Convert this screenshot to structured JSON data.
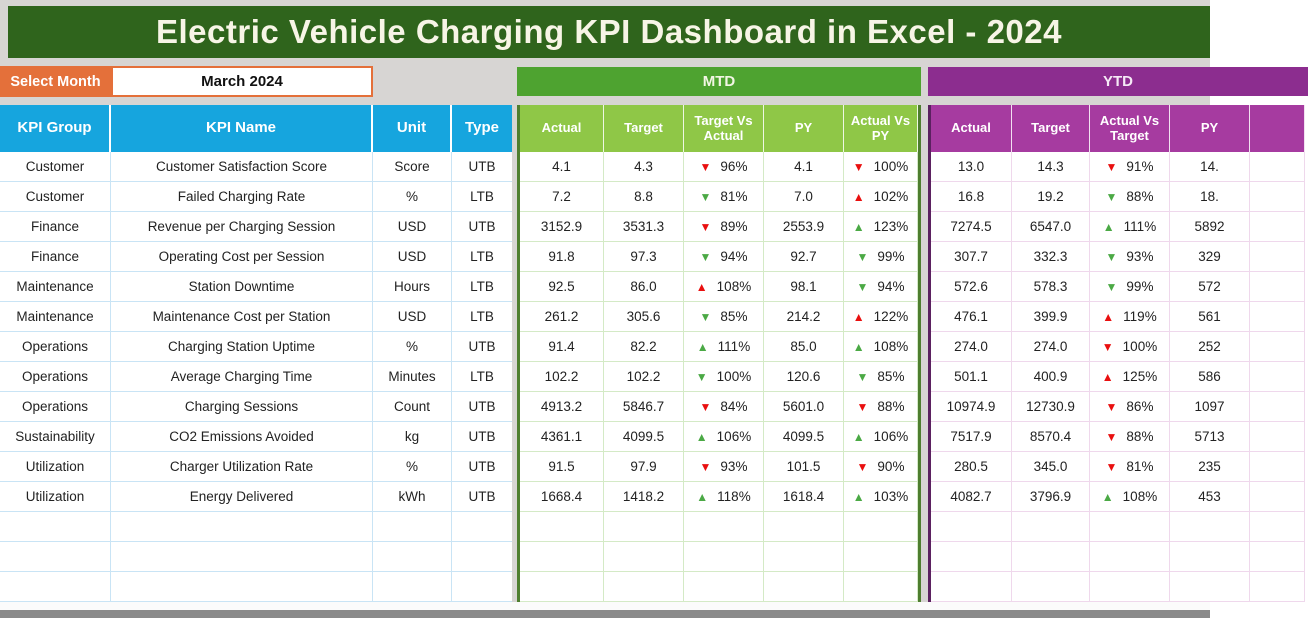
{
  "title": "Electric Vehicle Charging KPI Dashboard in Excel - 2024",
  "month_selector": {
    "label": "Select Month",
    "value": "March 2024"
  },
  "sections": {
    "mtd_label": "MTD",
    "ytd_label": "YTD"
  },
  "columns": {
    "left": [
      "KPI Group",
      "KPI Name",
      "Unit",
      "Type"
    ],
    "mtd": [
      "Actual",
      "Target",
      "Target Vs Actual",
      "PY",
      "Actual Vs PY"
    ],
    "ytd": [
      "Actual",
      "Target",
      "Actual Vs Target",
      "PY"
    ]
  },
  "colors": {
    "banner_green": "#2F641C",
    "title_text": "#F7F5E6",
    "orange": "#E4703A",
    "header_blue": "#16A5DE",
    "mtd_green": "#4EA330",
    "mtd_light_green": "#8FC747",
    "ytd_purple": "#8C2D8F",
    "ytd_magenta": "#A63BA0",
    "left_border_teal": "#1C7297",
    "mtd_border_green": "#4E7E2F",
    "ytd_border_purple": "#5B2160",
    "arrow_red": "#E90F0F",
    "arrow_green": "#4BA945",
    "grid_blue": "#C9E4F5",
    "grid_green": "#D4EAC6",
    "grid_pink": "#EFD8EC",
    "page_bg": "#D7D5D3",
    "bottom_bar": "#8A8A8A",
    "cell_text": "#222222"
  },
  "empty_row_count": 3,
  "rows": [
    {
      "group": "Customer",
      "name": "Customer Satisfaction Score",
      "unit": "Score",
      "type": "UTB",
      "mtd": {
        "actual": "4.1",
        "target": "4.3",
        "tva": {
          "dir": "down",
          "color": "red",
          "pct": "96%"
        },
        "py": "4.1",
        "avpy": {
          "dir": "down",
          "color": "red",
          "pct": "100%"
        }
      },
      "ytd": {
        "actual": "13.0",
        "target": "14.3",
        "avt": {
          "dir": "down",
          "color": "red",
          "pct": "91%"
        },
        "py": "14."
      }
    },
    {
      "group": "Customer",
      "name": "Failed Charging Rate",
      "unit": "%",
      "type": "LTB",
      "mtd": {
        "actual": "7.2",
        "target": "8.8",
        "tva": {
          "dir": "down",
          "color": "green",
          "pct": "81%"
        },
        "py": "7.0",
        "avpy": {
          "dir": "up",
          "color": "red",
          "pct": "102%"
        }
      },
      "ytd": {
        "actual": "16.8",
        "target": "19.2",
        "avt": {
          "dir": "down",
          "color": "green",
          "pct": "88%"
        },
        "py": "18."
      }
    },
    {
      "group": "Finance",
      "name": "Revenue per Charging Session",
      "unit": "USD",
      "type": "UTB",
      "mtd": {
        "actual": "3152.9",
        "target": "3531.3",
        "tva": {
          "dir": "down",
          "color": "red",
          "pct": "89%"
        },
        "py": "2553.9",
        "avpy": {
          "dir": "up",
          "color": "green",
          "pct": "123%"
        }
      },
      "ytd": {
        "actual": "7274.5",
        "target": "6547.0",
        "avt": {
          "dir": "up",
          "color": "green",
          "pct": "111%"
        },
        "py": "5892"
      }
    },
    {
      "group": "Finance",
      "name": "Operating Cost per Session",
      "unit": "USD",
      "type": "LTB",
      "mtd": {
        "actual": "91.8",
        "target": "97.3",
        "tva": {
          "dir": "down",
          "color": "green",
          "pct": "94%"
        },
        "py": "92.7",
        "avpy": {
          "dir": "down",
          "color": "green",
          "pct": "99%"
        }
      },
      "ytd": {
        "actual": "307.7",
        "target": "332.3",
        "avt": {
          "dir": "down",
          "color": "green",
          "pct": "93%"
        },
        "py": "329"
      }
    },
    {
      "group": "Maintenance",
      "name": "Station Downtime",
      "unit": "Hours",
      "type": "LTB",
      "mtd": {
        "actual": "92.5",
        "target": "86.0",
        "tva": {
          "dir": "up",
          "color": "red",
          "pct": "108%"
        },
        "py": "98.1",
        "avpy": {
          "dir": "down",
          "color": "green",
          "pct": "94%"
        }
      },
      "ytd": {
        "actual": "572.6",
        "target": "578.3",
        "avt": {
          "dir": "down",
          "color": "green",
          "pct": "99%"
        },
        "py": "572"
      }
    },
    {
      "group": "Maintenance",
      "name": "Maintenance Cost per Station",
      "unit": "USD",
      "type": "LTB",
      "mtd": {
        "actual": "261.2",
        "target": "305.6",
        "tva": {
          "dir": "down",
          "color": "green",
          "pct": "85%"
        },
        "py": "214.2",
        "avpy": {
          "dir": "up",
          "color": "red",
          "pct": "122%"
        }
      },
      "ytd": {
        "actual": "476.1",
        "target": "399.9",
        "avt": {
          "dir": "up",
          "color": "red",
          "pct": "119%"
        },
        "py": "561"
      }
    },
    {
      "group": "Operations",
      "name": "Charging Station Uptime",
      "unit": "%",
      "type": "UTB",
      "mtd": {
        "actual": "91.4",
        "target": "82.2",
        "tva": {
          "dir": "up",
          "color": "green",
          "pct": "111%"
        },
        "py": "85.0",
        "avpy": {
          "dir": "up",
          "color": "green",
          "pct": "108%"
        }
      },
      "ytd": {
        "actual": "274.0",
        "target": "274.0",
        "avt": {
          "dir": "down",
          "color": "red",
          "pct": "100%"
        },
        "py": "252"
      }
    },
    {
      "group": "Operations",
      "name": "Average Charging Time",
      "unit": "Minutes",
      "type": "LTB",
      "mtd": {
        "actual": "102.2",
        "target": "102.2",
        "tva": {
          "dir": "down",
          "color": "green",
          "pct": "100%"
        },
        "py": "120.6",
        "avpy": {
          "dir": "down",
          "color": "green",
          "pct": "85%"
        }
      },
      "ytd": {
        "actual": "501.1",
        "target": "400.9",
        "avt": {
          "dir": "up",
          "color": "red",
          "pct": "125%"
        },
        "py": "586"
      }
    },
    {
      "group": "Operations",
      "name": "Charging Sessions",
      "unit": "Count",
      "type": "UTB",
      "mtd": {
        "actual": "4913.2",
        "target": "5846.7",
        "tva": {
          "dir": "down",
          "color": "red",
          "pct": "84%"
        },
        "py": "5601.0",
        "avpy": {
          "dir": "down",
          "color": "red",
          "pct": "88%"
        }
      },
      "ytd": {
        "actual": "10974.9",
        "target": "12730.9",
        "avt": {
          "dir": "down",
          "color": "red",
          "pct": "86%"
        },
        "py": "1097"
      }
    },
    {
      "group": "Sustainability",
      "name": "CO2 Emissions Avoided",
      "unit": "kg",
      "type": "UTB",
      "mtd": {
        "actual": "4361.1",
        "target": "4099.5",
        "tva": {
          "dir": "up",
          "color": "green",
          "pct": "106%"
        },
        "py": "4099.5",
        "avpy": {
          "dir": "up",
          "color": "green",
          "pct": "106%"
        }
      },
      "ytd": {
        "actual": "7517.9",
        "target": "8570.4",
        "avt": {
          "dir": "down",
          "color": "red",
          "pct": "88%"
        },
        "py": "5713"
      }
    },
    {
      "group": "Utilization",
      "name": "Charger Utilization Rate",
      "unit": "%",
      "type": "UTB",
      "mtd": {
        "actual": "91.5",
        "target": "97.9",
        "tva": {
          "dir": "down",
          "color": "red",
          "pct": "93%"
        },
        "py": "101.5",
        "avpy": {
          "dir": "down",
          "color": "red",
          "pct": "90%"
        }
      },
      "ytd": {
        "actual": "280.5",
        "target": "345.0",
        "avt": {
          "dir": "down",
          "color": "red",
          "pct": "81%"
        },
        "py": "235"
      }
    },
    {
      "group": "Utilization",
      "name": "Energy Delivered",
      "unit": "kWh",
      "type": "UTB",
      "mtd": {
        "actual": "1668.4",
        "target": "1418.2",
        "tva": {
          "dir": "up",
          "color": "green",
          "pct": "118%"
        },
        "py": "1618.4",
        "avpy": {
          "dir": "up",
          "color": "green",
          "pct": "103%"
        }
      },
      "ytd": {
        "actual": "4082.7",
        "target": "3796.9",
        "avt": {
          "dir": "up",
          "color": "green",
          "pct": "108%"
        },
        "py": "453"
      }
    }
  ]
}
